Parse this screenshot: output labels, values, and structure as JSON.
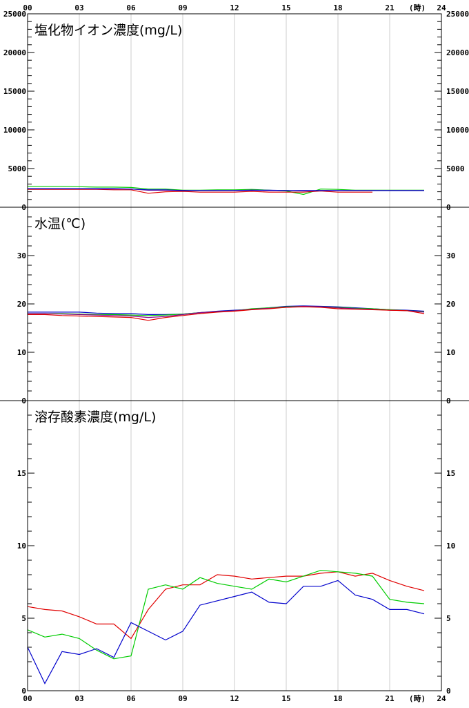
{
  "hour_unit": "(時)",
  "x_tick_labels": [
    "00",
    "03",
    "06",
    "09",
    "12",
    "15",
    "18",
    "21",
    "24"
  ],
  "colors": {
    "red": "#e00000",
    "green": "#00cc00",
    "blue": "#0000cc",
    "purple": "#880088",
    "grid": "#cccccc",
    "axis": "#000000"
  },
  "chart_data": [
    {
      "type": "line",
      "title": "塩化物イオン濃度(mg/L)",
      "xlabel": "",
      "ylabel": "",
      "xlim": [
        0,
        24
      ],
      "ylim": [
        0,
        25000
      ],
      "y_ticks": [
        0,
        5000,
        10000,
        15000,
        20000,
        25000
      ],
      "y_tick_labels_left": [
        "0",
        "5000",
        "10000",
        "15000",
        "20000",
        "25000"
      ],
      "y_tick_labels_right": [
        "0",
        "5000",
        "10000",
        "15000",
        "20000",
        "25000"
      ],
      "series": [
        {
          "color": "green",
          "x": [
            0,
            1,
            2,
            3,
            4,
            5,
            6,
            7,
            8,
            9,
            10,
            11,
            12,
            13,
            14,
            15,
            16,
            17,
            18,
            19,
            20,
            21,
            22,
            23
          ],
          "y": [
            2700,
            2700,
            2700,
            2650,
            2600,
            2600,
            2550,
            2350,
            2350,
            2200,
            2200,
            2250,
            2250,
            2300,
            2200,
            2100,
            1650,
            2350,
            2300,
            2200,
            2200,
            2200,
            2200,
            2200
          ]
        },
        {
          "color": "red",
          "x": [
            0,
            1,
            2,
            3,
            4,
            5,
            6,
            7,
            8,
            9,
            10,
            11,
            12,
            13,
            14,
            15,
            16,
            17,
            18,
            19,
            20
          ],
          "y": [
            2300,
            2300,
            2300,
            2300,
            2300,
            2250,
            2250,
            1800,
            2000,
            2050,
            1950,
            1950,
            1950,
            2050,
            1950,
            1950,
            1950,
            2100,
            1950,
            1950,
            1950
          ]
        },
        {
          "color": "purple",
          "x": [
            0,
            1,
            2,
            3,
            4,
            5,
            6,
            7,
            8,
            9,
            10,
            11,
            12,
            13,
            14,
            15,
            16,
            17,
            18,
            19,
            20,
            21,
            22,
            23
          ],
          "y": [
            2400,
            2400,
            2400,
            2400,
            2350,
            2350,
            2350,
            2200,
            2200,
            2150,
            2150,
            2150,
            2150,
            2200,
            2150,
            2150,
            2100,
            2150,
            2150,
            2150,
            2150,
            2150,
            2150,
            2150
          ]
        },
        {
          "color": "blue",
          "x": [
            0,
            1,
            2,
            3,
            4,
            5,
            6,
            7,
            8,
            9,
            10,
            11,
            12,
            13,
            14,
            15,
            16,
            17,
            18,
            19,
            20,
            21,
            22,
            23
          ],
          "y": [
            2400,
            2400,
            2400,
            2400,
            2400,
            2400,
            2350,
            2250,
            2250,
            2150,
            2150,
            2150,
            2150,
            2200,
            2200,
            2150,
            2150,
            2150,
            2150,
            2150,
            2150,
            2150,
            2150,
            2150
          ]
        }
      ]
    },
    {
      "type": "line",
      "title": "水温(℃)",
      "xlabel": "",
      "ylabel": "",
      "xlim": [
        0,
        24
      ],
      "ylim": [
        0,
        40
      ],
      "y_ticks": [
        0,
        10,
        20,
        30
      ],
      "y_tick_labels_left": [
        "0",
        "10",
        "20",
        "30"
      ],
      "y_tick_labels_right": [
        "0",
        "10",
        "20",
        "30"
      ],
      "series": [
        {
          "color": "blue",
          "x": [
            0,
            1,
            2,
            3,
            4,
            5,
            6,
            7,
            8,
            9,
            10,
            11,
            12,
            13,
            14,
            15,
            16,
            17,
            18,
            19,
            20,
            21,
            22,
            23
          ],
          "y": [
            18.3,
            18.3,
            18.3,
            18.3,
            18.1,
            18.0,
            18.0,
            17.8,
            17.8,
            17.9,
            18.2,
            18.5,
            18.7,
            18.9,
            19.2,
            19.5,
            19.6,
            19.5,
            19.4,
            19.2,
            19.0,
            18.8,
            18.7,
            18.5
          ]
        },
        {
          "color": "green",
          "x": [
            0,
            1,
            2,
            3,
            4,
            5,
            6,
            7,
            8,
            9,
            10,
            11,
            12,
            13,
            14,
            15,
            16,
            17,
            18,
            19,
            20,
            21,
            22,
            23
          ],
          "y": [
            18.0,
            18.0,
            18.0,
            17.9,
            17.8,
            17.8,
            17.7,
            17.6,
            17.7,
            17.9,
            18.2,
            18.4,
            18.6,
            19.0,
            19.2,
            19.4,
            19.5,
            19.4,
            19.3,
            19.1,
            19.0,
            18.8,
            18.6,
            18.4
          ]
        },
        {
          "color": "purple",
          "x": [
            0,
            1,
            2,
            3,
            4,
            5,
            6,
            7,
            8,
            9,
            10,
            11,
            12,
            13,
            14,
            15,
            16,
            17,
            18,
            19,
            20,
            21,
            22,
            23
          ],
          "y": [
            18.0,
            18.0,
            17.9,
            17.8,
            17.7,
            17.6,
            17.5,
            17.2,
            17.4,
            17.8,
            18.2,
            18.4,
            18.6,
            18.9,
            19.1,
            19.3,
            19.5,
            19.4,
            19.2,
            19.0,
            18.9,
            18.7,
            18.6,
            18.3
          ]
        },
        {
          "color": "red",
          "x": [
            0,
            1,
            2,
            3,
            4,
            5,
            6,
            7,
            8,
            9,
            10,
            11,
            12,
            13,
            14,
            15,
            16,
            17,
            18,
            19,
            20,
            21,
            22,
            23
          ],
          "y": [
            17.8,
            17.8,
            17.6,
            17.5,
            17.4,
            17.3,
            17.2,
            16.6,
            17.2,
            17.6,
            18.0,
            18.3,
            18.5,
            18.8,
            19.0,
            19.3,
            19.4,
            19.3,
            19.0,
            18.9,
            18.8,
            18.7,
            18.6,
            18.0
          ]
        }
      ]
    },
    {
      "type": "line",
      "title": "溶存酸素濃度(mg/L)",
      "xlabel": "",
      "ylabel": "",
      "xlim": [
        0,
        24
      ],
      "ylim": [
        0,
        20
      ],
      "y_ticks": [
        0,
        5,
        10,
        15
      ],
      "y_tick_labels_left": [
        "0",
        "5",
        "10",
        "15"
      ],
      "y_tick_labels_right": [
        "0",
        "5",
        "10",
        "15"
      ],
      "series": [
        {
          "color": "red",
          "x": [
            0,
            1,
            2,
            3,
            4,
            5,
            6,
            7,
            8,
            9,
            10,
            11,
            12,
            13,
            14,
            15,
            16,
            17,
            18,
            19,
            20,
            21,
            22,
            23
          ],
          "y": [
            5.8,
            5.6,
            5.5,
            5.1,
            4.6,
            4.6,
            3.6,
            5.6,
            7.0,
            7.3,
            7.3,
            8.0,
            7.9,
            7.7,
            7.8,
            7.9,
            7.9,
            8.1,
            8.2,
            7.9,
            8.1,
            7.6,
            7.2,
            6.9
          ]
        },
        {
          "color": "green",
          "x": [
            0,
            1,
            2,
            3,
            4,
            5,
            6,
            7,
            8,
            9,
            10,
            11,
            12,
            13,
            14,
            15,
            16,
            17,
            18,
            19,
            20,
            21,
            22,
            23
          ],
          "y": [
            4.2,
            3.7,
            3.9,
            3.6,
            2.8,
            2.2,
            2.4,
            7.0,
            7.3,
            7.0,
            7.8,
            7.4,
            7.2,
            7.0,
            7.7,
            7.5,
            7.9,
            8.3,
            8.2,
            8.1,
            7.9,
            6.3,
            6.1,
            6.0
          ]
        },
        {
          "color": "blue",
          "x": [
            0,
            1,
            2,
            3,
            4,
            5,
            6,
            7,
            8,
            9,
            10,
            11,
            12,
            13,
            14,
            15,
            16,
            17,
            18,
            19,
            20,
            21,
            22,
            23
          ],
          "y": [
            3.0,
            0.5,
            2.7,
            2.5,
            2.9,
            2.3,
            4.7,
            4.1,
            3.5,
            4.1,
            5.9,
            6.2,
            6.5,
            6.8,
            6.1,
            6.0,
            7.2,
            7.2,
            7.6,
            6.6,
            6.3,
            5.6,
            5.6,
            5.3
          ]
        }
      ]
    }
  ]
}
